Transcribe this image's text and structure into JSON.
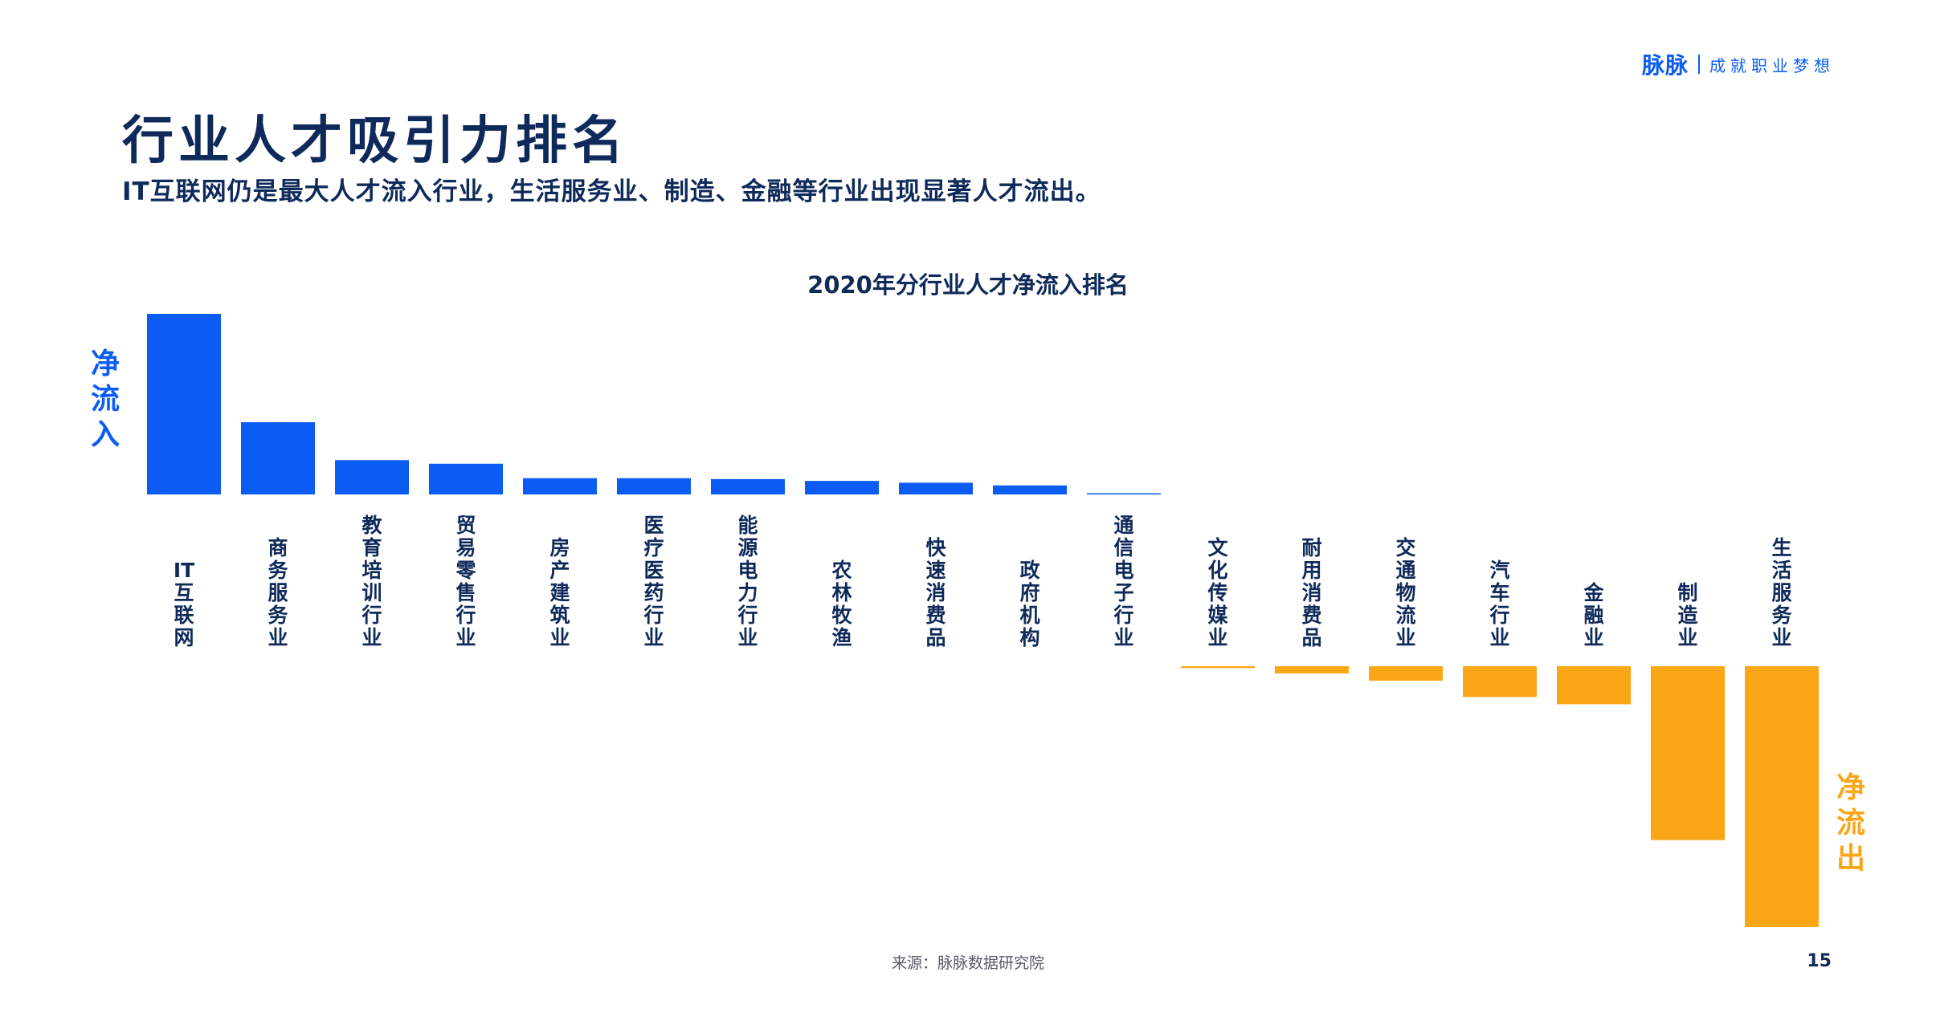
{
  "header": {
    "brand_logo": "脉脉",
    "brand_slogan": "成就职业梦想"
  },
  "title": "行业人才吸引力排名",
  "subtitle": "IT互联网仍是最大人才流入行业，生活服务业、制造、金融等行业出现显著人才流出。",
  "footer": {
    "source": "来源：脉脉数据研究院",
    "page_number": "15"
  },
  "colors": {
    "inflow": "#0a5cf5",
    "outflow": "#fba617",
    "title": "#0f2a5a"
  },
  "chart_data": {
    "type": "bar",
    "title": "2020年分行业人才净流入排名",
    "inflow_label": "净流入",
    "outflow_label": "净流出",
    "categories": [
      "IT互联网",
      "商务服务业",
      "教育培训行业",
      "贸易零售行业",
      "房产建筑业",
      "医疗医药行业",
      "能源电力行业",
      "农林牧渔",
      "快速消费品",
      "政府机构",
      "通信电子行业",
      "文化传媒业",
      "耐用消费品",
      "交通物流业",
      "汽车行业",
      "金融业",
      "制造业",
      "生活服务业"
    ],
    "values": [
      100,
      40,
      19,
      17,
      9,
      9,
      8.5,
      7.5,
      6.5,
      5,
      0.5,
      -1,
      -4,
      -8,
      -17,
      -21,
      -96,
      -144
    ],
    "ylim": [
      -150,
      105
    ],
    "grid": false
  }
}
